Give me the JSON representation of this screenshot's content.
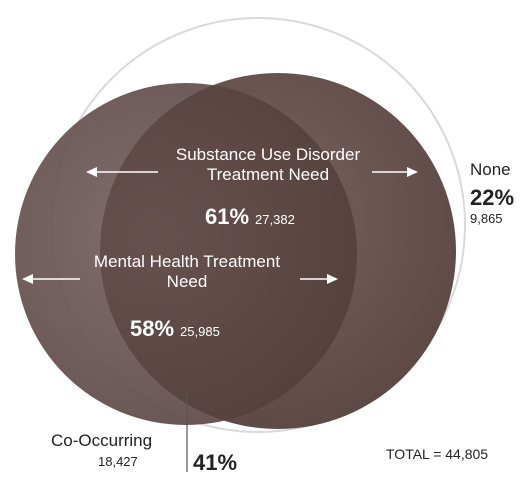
{
  "chart_data": {
    "type": "venn",
    "total_label": "TOTAL = 44,805",
    "sets": [
      {
        "id": "substance_use_disorder",
        "label_line1": "Substance Use Disorder",
        "label_line2": "Treatment Need",
        "percent": "61%",
        "count": "27,382"
      },
      {
        "id": "mental_health",
        "label_line1": "Mental Health Treatment",
        "label_line2": "Need",
        "percent": "58%",
        "count": "25,985"
      }
    ],
    "overlap": {
      "label": "Co-Occurring",
      "percent": "41%",
      "count": "18,427"
    },
    "none": {
      "label": "None",
      "percent": "22%",
      "count": "9,865"
    },
    "colors": {
      "circle_fill": "#6b5553",
      "overlap_fill": "#523e3c",
      "outline": "#d9d9d9",
      "label_text": "#ffffff",
      "outer_text": "#222222"
    }
  }
}
